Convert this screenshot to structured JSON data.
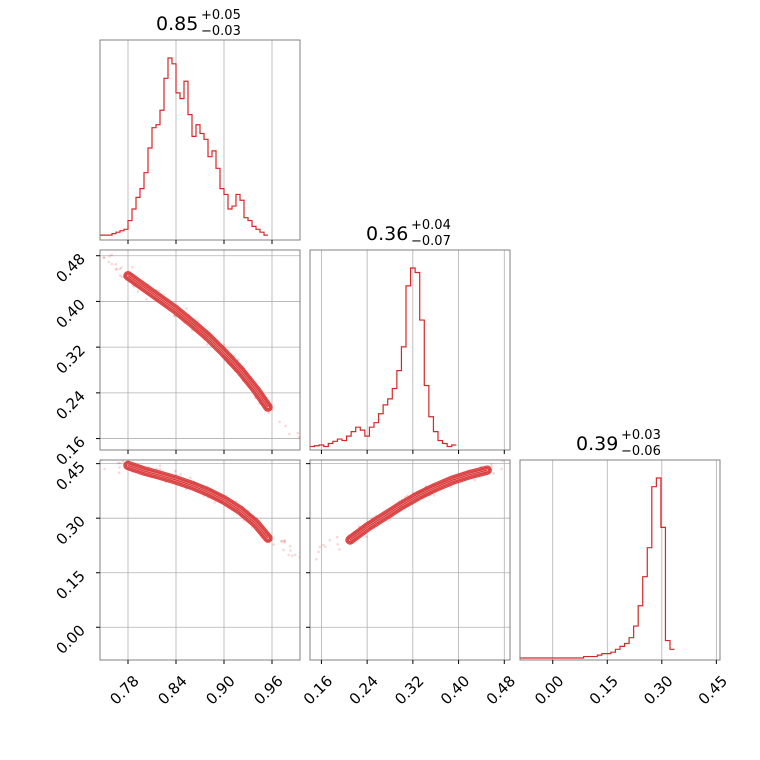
{
  "colors": {
    "series": "#d62728",
    "grid": "#b0b0b0",
    "frame": "#808080"
  },
  "chart_data": {
    "type": "corner",
    "grid": true,
    "parameters": [
      {
        "median": "0.85",
        "plus": "+0.05",
        "minus": "−0.03",
        "range": [
          0.745,
          0.995
        ]
      },
      {
        "median": "0.36",
        "plus": "+0.04",
        "minus": "−0.07",
        "range": [
          0.14,
          0.49
        ]
      },
      {
        "median": "0.39",
        "plus": "+0.03",
        "minus": "−0.06",
        "range": [
          -0.09,
          0.46
        ]
      }
    ],
    "ticks": [
      {
        "values": [
          0.78,
          0.84,
          0.9,
          0.96
        ],
        "labels": [
          "0.78",
          "0.84",
          "0.90",
          "0.96"
        ]
      },
      {
        "values": [
          0.16,
          0.24,
          0.32,
          0.4,
          0.48
        ],
        "labels": [
          "0.16",
          "0.24",
          "0.32",
          "0.40",
          "0.48"
        ]
      },
      {
        "values": [
          0.0,
          0.15,
          0.3,
          0.45
        ],
        "labels": [
          "0.00",
          "0.15",
          "0.30",
          "0.45"
        ]
      }
    ],
    "histograms": [
      {
        "start": 0.745,
        "width": 0.005,
        "counts": [
          2,
          2,
          2,
          3,
          4,
          5,
          6,
          12,
          20,
          28,
          34,
          45,
          62,
          76,
          78,
          88,
          110,
          124,
          120,
          100,
          96,
          108,
          85,
          70,
          78,
          72,
          68,
          56,
          60,
          48,
          34,
          30,
          20,
          22,
          30,
          26,
          14,
          12,
          8,
          6,
          4,
          2
        ]
      },
      {
        "start": 0.14,
        "width": 0.008,
        "counts": [
          2,
          3,
          4,
          2,
          6,
          9,
          12,
          10,
          16,
          22,
          28,
          24,
          16,
          28,
          34,
          46,
          58,
          66,
          80,
          104,
          136,
          218,
          242,
          236,
          172,
          84,
          42,
          22,
          10,
          6,
          2,
          4
        ]
      },
      {
        "start": -0.09,
        "width": 0.0125,
        "counts": [
          0,
          0,
          0,
          0,
          0,
          0,
          0,
          0,
          0,
          0,
          0,
          0,
          0,
          0,
          1,
          1,
          1,
          2,
          3,
          3,
          4,
          6,
          8,
          10,
          14,
          22,
          36,
          56,
          76,
          118,
          124,
          90,
          12,
          6
        ]
      }
    ],
    "contours": [
      {
        "panel": "1-0",
        "points": [
          [
            0.78,
            0.445
          ],
          [
            0.8,
            0.425
          ],
          [
            0.82,
            0.405
          ],
          [
            0.84,
            0.385
          ],
          [
            0.86,
            0.362
          ],
          [
            0.88,
            0.338
          ],
          [
            0.9,
            0.31
          ],
          [
            0.92,
            0.28
          ],
          [
            0.94,
            0.245
          ],
          [
            0.955,
            0.215
          ]
        ]
      },
      {
        "panel": "2-0",
        "points": [
          [
            0.78,
            0.445
          ],
          [
            0.8,
            0.43
          ],
          [
            0.82,
            0.418
          ],
          [
            0.84,
            0.405
          ],
          [
            0.86,
            0.39
          ],
          [
            0.88,
            0.372
          ],
          [
            0.9,
            0.35
          ],
          [
            0.92,
            0.322
          ],
          [
            0.94,
            0.285
          ],
          [
            0.955,
            0.245
          ]
        ]
      },
      {
        "panel": "2-1",
        "points": [
          [
            0.21,
            0.24
          ],
          [
            0.24,
            0.275
          ],
          [
            0.27,
            0.305
          ],
          [
            0.3,
            0.335
          ],
          [
            0.33,
            0.362
          ],
          [
            0.36,
            0.385
          ],
          [
            0.39,
            0.405
          ],
          [
            0.42,
            0.42
          ],
          [
            0.45,
            0.432
          ]
        ]
      }
    ]
  }
}
